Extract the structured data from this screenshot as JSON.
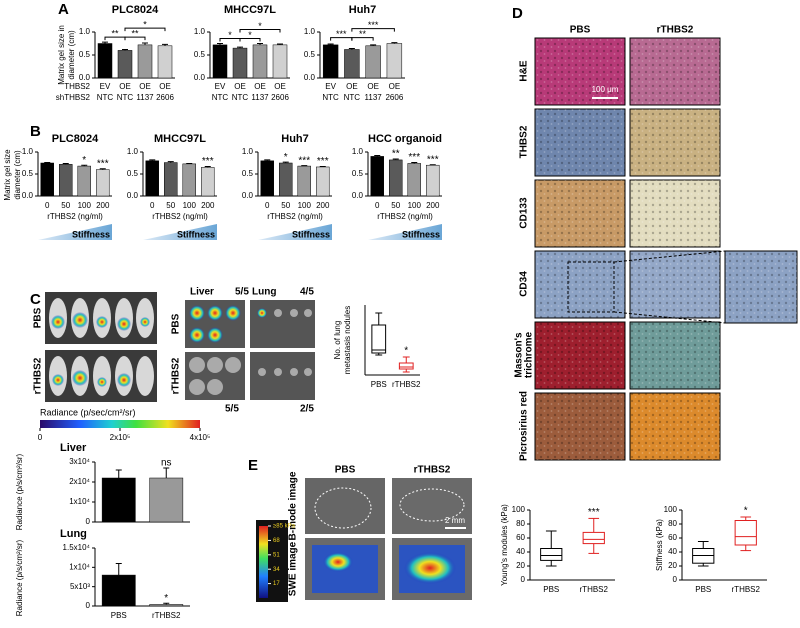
{
  "panels": {
    "A": {
      "label": "A",
      "ylabel": [
        "Matrix gel size in",
        "diameter (cm)"
      ],
      "row_labels": [
        "THBS2",
        "shTHBS2"
      ],
      "rows": [
        [
          "EV",
          "OE",
          "OE",
          "OE"
        ],
        [
          "NTC",
          "NTC",
          "1137",
          "2606"
        ]
      ],
      "colors": [
        "#000000",
        "#5a5a5a",
        "#9a9a9a",
        "#d0d0d0"
      ],
      "ylim": [
        0,
        1
      ],
      "yticks": [
        {
          "value": 0,
          "label": "0.0"
        },
        {
          "value": 0.5,
          "label": "0.5"
        },
        {
          "value": 1,
          "label": "1.0"
        }
      ],
      "charts": [
        {
          "title": "PLC8024",
          "values": [
            0.75,
            0.6,
            0.72,
            0.7
          ],
          "errors": [
            0.03,
            0.02,
            0.04,
            0.03
          ],
          "sig": [
            {
              "from": 0,
              "to": 1,
              "label": "**"
            },
            {
              "from": 1,
              "to": 2,
              "label": "**"
            },
            {
              "from": 1,
              "to": 3,
              "label": "*"
            }
          ]
        },
        {
          "title": "MHCC97L",
          "values": [
            0.72,
            0.65,
            0.72,
            0.72
          ],
          "errors": [
            0.03,
            0.02,
            0.03,
            0.02
          ],
          "sig": [
            {
              "from": 0,
              "to": 1,
              "label": "*"
            },
            {
              "from": 1,
              "to": 2,
              "label": "*"
            },
            {
              "from": 1,
              "to": 3,
              "label": "*"
            }
          ]
        },
        {
          "title": "Huh7",
          "values": [
            0.72,
            0.62,
            0.7,
            0.75
          ],
          "errors": [
            0.02,
            0.02,
            0.02,
            0.02
          ],
          "sig": [
            {
              "from": 0,
              "to": 1,
              "label": "***"
            },
            {
              "from": 1,
              "to": 2,
              "label": "**"
            },
            {
              "from": 1,
              "to": 3,
              "label": "***"
            }
          ]
        }
      ]
    },
    "B": {
      "label": "B",
      "ylabel": [
        "Matrix gel size",
        "diameter (cm)"
      ],
      "xlabel": "rTHBS2 (ng/ml)",
      "gradient_label": "Stiffness",
      "categories": [
        "0",
        "50",
        "100",
        "200"
      ],
      "colors": [
        "#000000",
        "#5a5a5a",
        "#9a9a9a",
        "#d0d0d0"
      ],
      "ylim": [
        0,
        1
      ],
      "yticks": [
        {
          "value": 0,
          "label": "0.0"
        },
        {
          "value": 0.5,
          "label": "0.5"
        },
        {
          "value": 1,
          "label": "1.0"
        }
      ],
      "charts": [
        {
          "title": "PLC8024",
          "values": [
            0.75,
            0.72,
            0.68,
            0.6
          ],
          "errors": [
            0.01,
            0.02,
            0.02,
            0.02
          ],
          "markers": [
            null,
            null,
            "*",
            "***"
          ]
        },
        {
          "title": "MHCC97L",
          "values": [
            0.8,
            0.76,
            0.73,
            0.65
          ],
          "errors": [
            0.02,
            0.02,
            0.01,
            0.02
          ],
          "markers": [
            null,
            null,
            null,
            "***"
          ]
        },
        {
          "title": "Huh7",
          "values": [
            0.8,
            0.75,
            0.68,
            0.66
          ],
          "errors": [
            0.02,
            0.02,
            0.01,
            0.01
          ],
          "markers": [
            null,
            "*",
            "***",
            "***"
          ]
        },
        {
          "title": "HCC organoid",
          "values": [
            0.9,
            0.82,
            0.74,
            0.7
          ],
          "errors": [
            0.02,
            0.02,
            0.02,
            0.01
          ],
          "markers": [
            null,
            "**",
            "***",
            "***"
          ]
        }
      ]
    },
    "C": {
      "label": "C",
      "groups": [
        "PBS",
        "rTHBS2"
      ],
      "organs": [
        "Liver",
        "Lung"
      ],
      "ratios": {
        "liver_pbs": "5/5",
        "lung_pbs": "4/5",
        "liver_rthbs2": "5/5",
        "lung_rthbs2": "2/5"
      },
      "colorbar": {
        "label": "Radiance (p/sec/cm²/sr)",
        "lim": [
          0,
          400000
        ],
        "ticks": [
          0,
          {
            "value": 200000,
            "label": "2x10⁵"
          },
          {
            "value": 400000,
            "label": "4x10⁵"
          }
        ]
      },
      "nodules": {
        "ylabel": [
          "No. of lung",
          "metastasis nodules"
        ],
        "ylim": [
          0,
          70
        ],
        "sig": "*",
        "groups": [
          {
            "name": "PBS",
            "color": "#000000",
            "min": 20,
            "q1": 22,
            "median": 25,
            "q3": 50,
            "max": 62
          },
          {
            "name": "rTHBS2",
            "color": "#e02020",
            "min": 3,
            "q1": 6,
            "median": 8,
            "q3": 12,
            "max": 18
          }
        ]
      },
      "liver": {
        "title": "Liver",
        "ylabel": "Radiance (p/s/cm²/sr)",
        "values": [
          22000,
          22000
        ],
        "errors": [
          4000,
          5000
        ],
        "markers": [
          null,
          "ns"
        ],
        "colors": [
          "#000000",
          "#999999"
        ],
        "ylim": [
          0,
          30000
        ],
        "yticks": [
          0,
          {
            "value": 10000,
            "label": "1x10⁴"
          },
          {
            "value": 20000,
            "label": "2x10⁴"
          },
          {
            "value": 30000,
            "label": "3x10⁴"
          }
        ]
      },
      "lung": {
        "title": "Lung",
        "ylabel": "Radiance (p/s/cm²/sr)",
        "categories": [
          "PBS",
          "rTHBS2"
        ],
        "values": [
          8000,
          400
        ],
        "errors": [
          3000,
          300
        ],
        "markers": [
          null,
          "*"
        ],
        "colors": [
          "#000000",
          "#999999"
        ],
        "ylim": [
          0,
          15000
        ],
        "yticks": [
          0,
          {
            "value": 5000,
            "label": "5x10³"
          },
          {
            "value": 10000,
            "label": "1x10⁴"
          },
          {
            "value": 15000,
            "label": "1.5x10⁴"
          }
        ]
      }
    },
    "D": {
      "label": "D",
      "columns": [
        "PBS",
        "rTHBS2"
      ],
      "rows": [
        [
          "H&E"
        ],
        [
          "THBS2"
        ],
        [
          "CD133"
        ],
        [
          "CD34"
        ],
        [
          "Masson's",
          "trichrome"
        ],
        [
          "Picrosirius red"
        ]
      ],
      "scale_bar": "100 μm",
      "youngs": {
        "ylabel": "Young's modules (kPa)",
        "ylim": [
          0,
          100
        ],
        "yticks": [
          0,
          20,
          40,
          60,
          80,
          100
        ],
        "sig": "***",
        "groups": [
          {
            "name": "PBS",
            "color": "#000000",
            "min": 20,
            "q1": 28,
            "median": 35,
            "q3": 45,
            "max": 70
          },
          {
            "name": "rTHBS2",
            "color": "#e02020",
            "min": 38,
            "q1": 52,
            "median": 58,
            "q3": 68,
            "max": 88
          }
        ]
      },
      "stiffness": {
        "ylabel": "Stiffness (kPa)",
        "ylim": [
          0,
          100
        ],
        "yticks": [
          0,
          20,
          40,
          60,
          80,
          100
        ],
        "sig": "*",
        "groups": [
          {
            "name": "PBS",
            "color": "#000000",
            "min": 20,
            "q1": 24,
            "median": 35,
            "q3": 45,
            "max": 55
          },
          {
            "name": "rTHBS2",
            "color": "#e02020",
            "min": 42,
            "q1": 50,
            "median": 62,
            "q3": 85,
            "max": 90
          }
        ]
      }
    },
    "E": {
      "label": "E",
      "columns": [
        "PBS",
        "rTHBS2"
      ],
      "rows": [
        "B-mode image",
        "SWE image"
      ],
      "scale_bar": "2 mm",
      "colorbar": {
        "lim": [
          0,
          85
        ],
        "ticks": [
          {
            "value": 85,
            "label": "≥85 kPa"
          },
          68,
          51,
          34,
          17
        ]
      }
    }
  }
}
